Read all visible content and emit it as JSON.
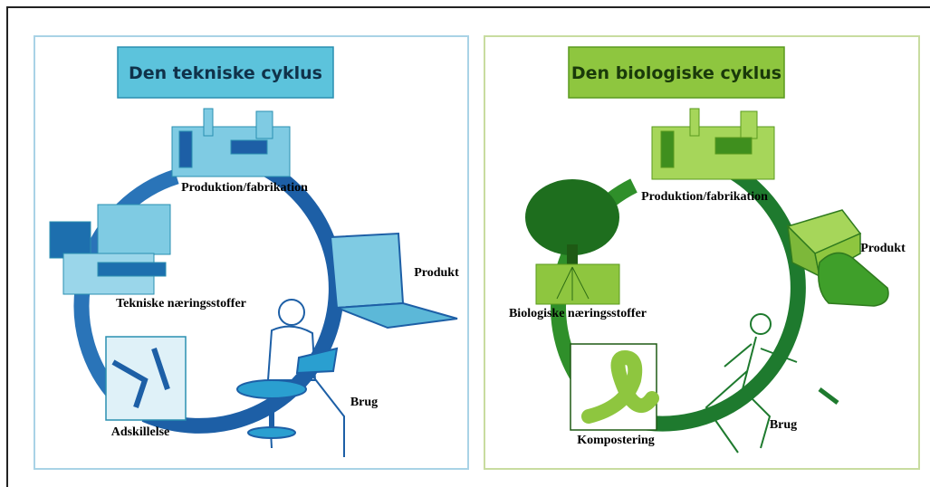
{
  "panels": [
    {
      "title": "Den tekniske cyklus",
      "labels": [
        "Produktion/fabrikation",
        "Produkt",
        "Brug",
        "Adskillelse",
        "Tekniske næringsstoffer"
      ]
    },
    {
      "title": "Den biologiske cyklus",
      "labels": [
        "Produktion/fabrikation",
        "Produkt",
        "Brug",
        "Kompostering",
        "Biologiske næringsstoffer"
      ]
    }
  ]
}
